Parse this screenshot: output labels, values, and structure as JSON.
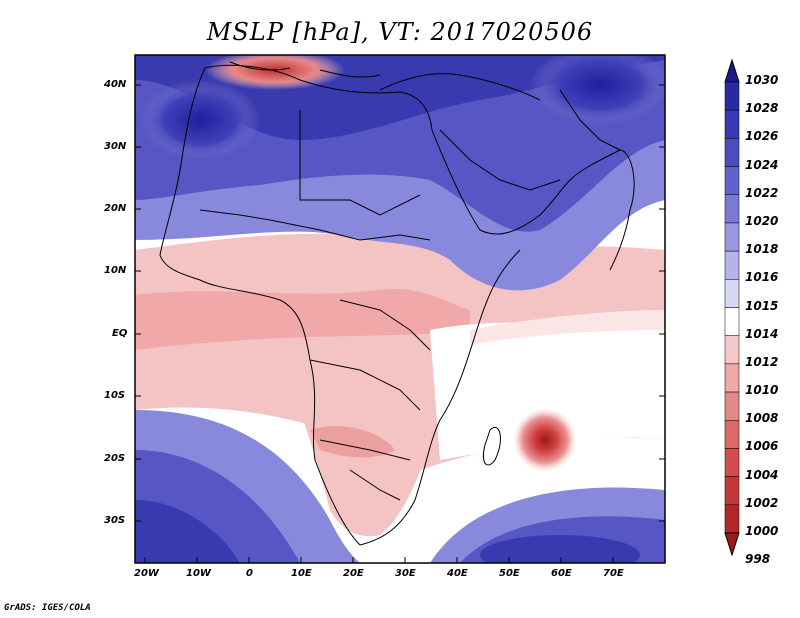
{
  "title": "MSLP [hPa], VT: 2017020506",
  "credit": "GrADS: IGES/COLA",
  "y_axis": {
    "labels": [
      "40N",
      "30N",
      "20N",
      "10N",
      "EQ",
      "10S",
      "20S",
      "30S"
    ]
  },
  "x_axis": {
    "labels": [
      "20W",
      "10W",
      "0",
      "10E",
      "20E",
      "30E",
      "40E",
      "50E",
      "60E",
      "70E"
    ]
  },
  "colorbar": {
    "labels": [
      "1030",
      "1028",
      "1026",
      "1024",
      "1022",
      "1020",
      "1018",
      "1016",
      "1015",
      "1014",
      "1012",
      "1010",
      "1008",
      "1006",
      "1004",
      "1002",
      "1000",
      "998"
    ],
    "colors": [
      "#1a1a8c",
      "#2a2aa0",
      "#3838b0",
      "#4c4cc0",
      "#6262cc",
      "#7a7ad6",
      "#9898e0",
      "#b4b4ea",
      "#d8d8f4",
      "#ffffff",
      "#f4c8c8",
      "#f0a8a8",
      "#e48888",
      "#dc6868",
      "#d44c4c",
      "#c43838",
      "#b02828",
      "#9c1c1c"
    ]
  },
  "map": {
    "colors": {
      "high_pressure": "#3333aa",
      "mid_high": "#8080d8",
      "neutral": "#ffffff",
      "low": "#f0b0b0",
      "deep_low": "#c03030"
    }
  }
}
